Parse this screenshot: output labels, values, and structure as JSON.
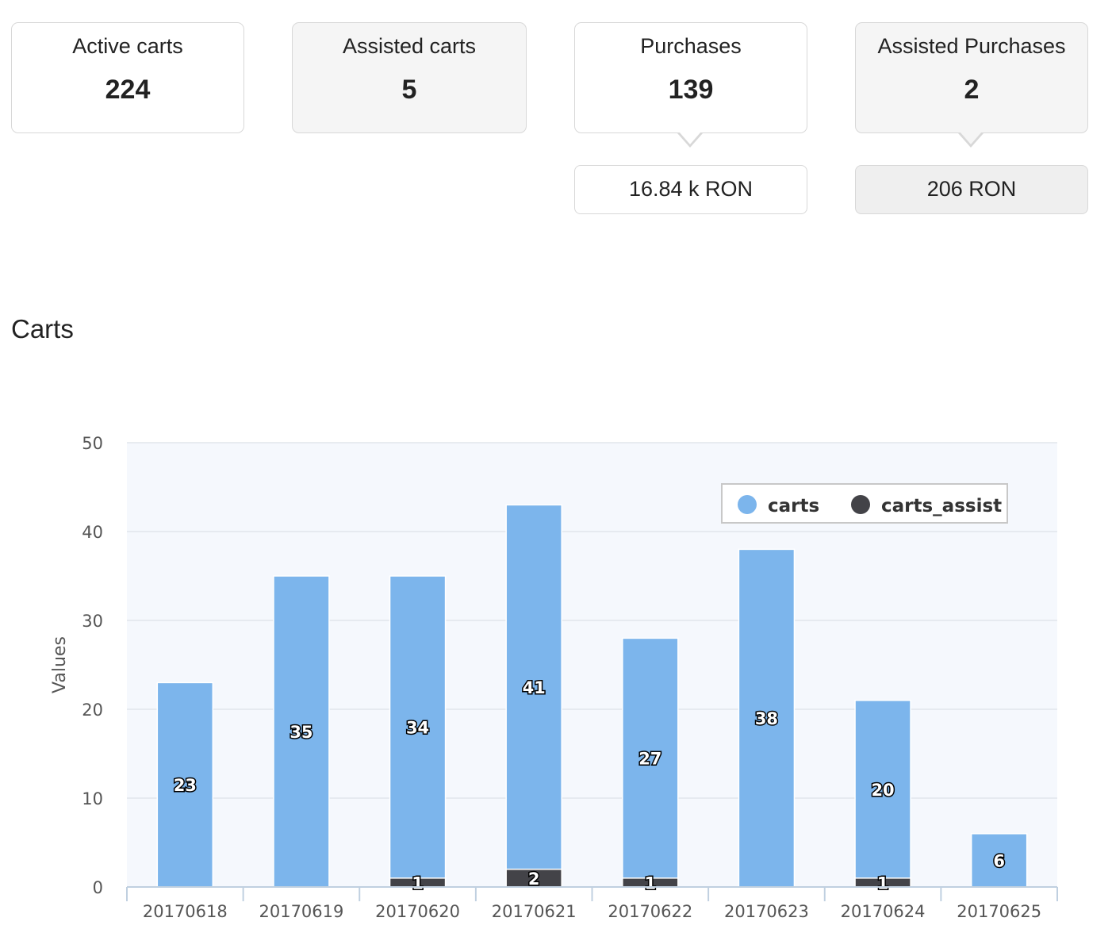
{
  "cards": [
    {
      "label": "Active carts",
      "value": "224"
    },
    {
      "label": "Assisted carts",
      "value": "5"
    },
    {
      "label": "Purchases",
      "value": "139",
      "sub": "16.84 k RON"
    },
    {
      "label": "Assisted Purchases",
      "value": "2",
      "sub": "206 RON"
    }
  ],
  "section_title": "Carts",
  "chart_data": {
    "type": "bar",
    "stacked": true,
    "categories": [
      "20170618",
      "20170619",
      "20170620",
      "20170621",
      "20170622",
      "20170623",
      "20170624",
      "20170625"
    ],
    "series": [
      {
        "name": "carts",
        "values": [
          23,
          35,
          34,
          41,
          27,
          38,
          20,
          6
        ],
        "color": "#7cb5ec"
      },
      {
        "name": "carts_assist",
        "values": [
          0,
          0,
          1,
          2,
          1,
          0,
          1,
          0
        ],
        "color": "#434348"
      }
    ],
    "ylabel": "Values",
    "ylim": [
      0,
      50
    ],
    "yticks": [
      0,
      10,
      20,
      30,
      40,
      50
    ],
    "grid": true,
    "legend_position": "top-right",
    "plot_background": "#f5f8fd"
  }
}
